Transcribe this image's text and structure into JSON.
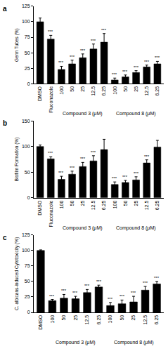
{
  "chart_data": [
    {
      "type": "bar",
      "title": "a",
      "y_label": "Germ Tubes (%)",
      "color": "#000000",
      "categories": [
        "DMSO",
        "Fluconazole",
        "100",
        "50",
        "25",
        "12.5",
        "6.25",
        "100",
        "50",
        "25",
        "12.5",
        "6.25"
      ],
      "values": [
        100,
        72,
        23,
        32,
        42,
        56,
        67,
        6,
        11,
        18,
        27,
        32
      ],
      "errors": [
        6,
        6,
        5,
        6,
        6,
        8,
        14,
        3,
        3,
        3,
        3,
        4
      ],
      "significance": [
        null,
        "***",
        "***",
        "***",
        "***",
        "***",
        "***",
        "***",
        "***",
        "***",
        "***",
        "***"
      ],
      "groups": [
        {
          "label": "Compound 3 (μM)",
          "from": 2,
          "to": 6
        },
        {
          "label": "Compound 8 (μM)",
          "from": 7,
          "to": 11
        }
      ],
      "ylim": [
        0,
        125
      ],
      "yticks": [
        0,
        25,
        50,
        75,
        100,
        125
      ],
      "grid": false
    },
    {
      "type": "bar",
      "title": "b",
      "y_label": "Biofilm Formation (%)",
      "color": "#000000",
      "categories": [
        "DMSO",
        "Fluconazole",
        "100",
        "50",
        "25",
        "12.5",
        "6.25",
        "100",
        "50",
        "25",
        "12.5",
        "6.25"
      ],
      "values": [
        100,
        76,
        36,
        46,
        61,
        72,
        94,
        26,
        30,
        35,
        68,
        99
      ],
      "errors": [
        3,
        4,
        6,
        6,
        8,
        10,
        20,
        5,
        4,
        6,
        6,
        13
      ],
      "significance": [
        null,
        "***",
        "***",
        "***",
        "***",
        "***",
        null,
        "***",
        "***",
        "***",
        "***",
        null
      ],
      "groups": [
        {
          "label": "Compound 3 (μM)",
          "from": 2,
          "to": 6
        },
        {
          "label": "Compound 8 (μM)",
          "from": 7,
          "to": 11
        }
      ],
      "ylim": [
        0,
        150
      ],
      "yticks": [
        0,
        50,
        100,
        150
      ],
      "grid": false
    },
    {
      "type": "bar",
      "title": "c",
      "y_label": "C. albicans-induced Cytotoxicity (%)",
      "color": "#000000",
      "categories": [
        "DMSO",
        "100",
        "50",
        "25",
        "12.5",
        "6.25",
        "100",
        "50",
        "25",
        "12.5",
        "6.25"
      ],
      "values": [
        100,
        19,
        23,
        22,
        32,
        41,
        11,
        14,
        17,
        36,
        46
      ],
      "errors": [
        1,
        2,
        6,
        4,
        5,
        3,
        5,
        6,
        9,
        6,
        4
      ],
      "significance": [
        null,
        "***",
        "***",
        "***",
        "***",
        "***",
        "***",
        "***",
        "***",
        "***",
        "***"
      ],
      "groups": [
        {
          "label": "Compound 3 (μM)",
          "from": 1,
          "to": 5
        },
        {
          "label": "Compound 8 (μM)",
          "from": 6,
          "to": 10
        }
      ],
      "ylim": [
        0,
        125
      ],
      "yticks": [
        0,
        25,
        50,
        75,
        100,
        125
      ],
      "grid": false
    }
  ]
}
